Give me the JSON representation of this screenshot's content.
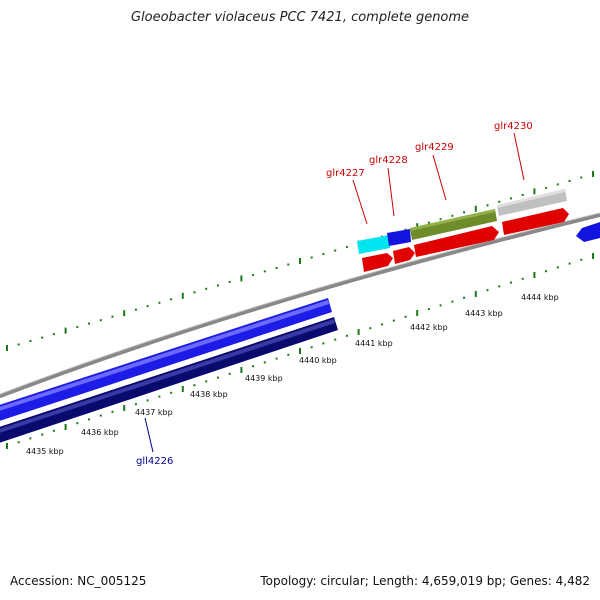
{
  "title": "Gloeobacter violaceus PCC 7421, complete genome",
  "footer": {
    "accession": "Accession: NC_005125",
    "summary": "Topology: circular; Length: 4,659,019 bp; Genes: 4,482"
  },
  "colors": {
    "backbone": "#8a8a8a",
    "tick": "#1a7a1a",
    "forward_cds": "#e00000",
    "label_forward": "#cc0000",
    "label_reverse": "#000099"
  },
  "scale_labels": [
    {
      "kbp": 4435,
      "text": "4435 kbp"
    },
    {
      "kbp": 4436,
      "text": "4436 kbp"
    },
    {
      "kbp": 4437,
      "text": "4437 kbp"
    },
    {
      "kbp": 4438,
      "text": "4438 kbp"
    },
    {
      "kbp": 4439,
      "text": "4439 kbp"
    },
    {
      "kbp": 4440,
      "text": "4440 kbp"
    },
    {
      "kbp": 4441,
      "text": "4441 kbp"
    },
    {
      "kbp": 4442,
      "text": "4442 kbp"
    },
    {
      "kbp": 4443,
      "text": "4443 kbp"
    },
    {
      "kbp": 4444,
      "text": "4444 kbp"
    }
  ],
  "gene_labels": [
    {
      "name": "gll4226",
      "strand": "reverse"
    },
    {
      "name": "glr4227",
      "strand": "forward"
    },
    {
      "name": "glr4228",
      "strand": "forward"
    },
    {
      "name": "glr4229",
      "strand": "forward"
    },
    {
      "name": "glr4230",
      "strand": "forward"
    }
  ]
}
